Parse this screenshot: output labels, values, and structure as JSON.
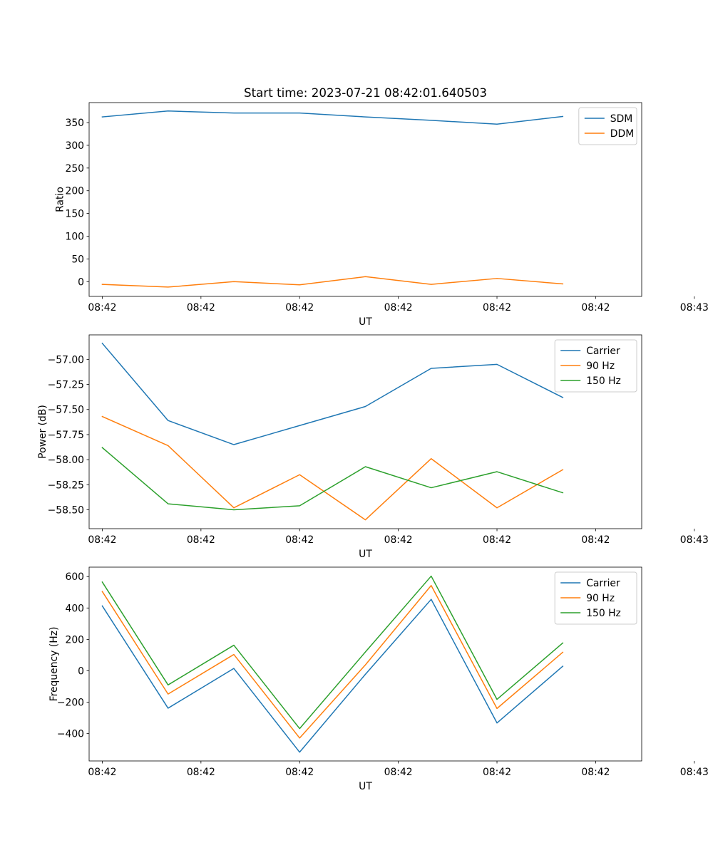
{
  "figure": {
    "title": "Start time: 2023-07-21 08:42:01.640503"
  },
  "chart_data": [
    {
      "type": "line",
      "id": "ratio",
      "title": "Start time: 2023-07-21 08:42:01.640503",
      "xlabel": "UT",
      "ylabel": "Ratio",
      "x": [
        0,
        1,
        2,
        3,
        4,
        5,
        6,
        7
      ],
      "xlim": [
        -0.2,
        8.2
      ],
      "xticks": [
        {
          "value": 0,
          "label": "08:42"
        },
        {
          "value": 1.5,
          "label": "08:42"
        },
        {
          "value": 3.0,
          "label": "08:42"
        },
        {
          "value": 4.5,
          "label": "08:42"
        },
        {
          "value": 6.0,
          "label": "08:42"
        },
        {
          "value": 7.5,
          "label": "08:42"
        },
        {
          "value": 9.0,
          "label": "08:43"
        }
      ],
      "ylim": [
        -32.5,
        394
      ],
      "yticks": [
        {
          "value": 0,
          "label": "0"
        },
        {
          "value": 50,
          "label": "50"
        },
        {
          "value": 100,
          "label": "100"
        },
        {
          "value": 150,
          "label": "150"
        },
        {
          "value": 200,
          "label": "200"
        },
        {
          "value": 250,
          "label": "250"
        },
        {
          "value": 300,
          "label": "300"
        },
        {
          "value": 350,
          "label": "350"
        }
      ],
      "legend_position": "top-right",
      "series": [
        {
          "name": "SDM",
          "color": "#1f77b4",
          "values": [
            362.5,
            375.5,
            371,
            371,
            362.5,
            355,
            346.5,
            363.5
          ]
        },
        {
          "name": "DDM",
          "color": "#ff7f0e",
          "values": [
            -6,
            -12,
            0,
            -7,
            11,
            -6,
            7,
            -5
          ]
        }
      ]
    },
    {
      "type": "line",
      "id": "power",
      "title": "",
      "xlabel": "UT",
      "ylabel": "Power (dB)",
      "x": [
        0,
        1,
        2,
        3,
        4,
        5,
        6,
        7
      ],
      "xlim": [
        -0.2,
        8.2
      ],
      "xticks": [
        {
          "value": 0,
          "label": "08:42"
        },
        {
          "value": 1.5,
          "label": "08:42"
        },
        {
          "value": 3.0,
          "label": "08:42"
        },
        {
          "value": 4.5,
          "label": "08:42"
        },
        {
          "value": 6.0,
          "label": "08:42"
        },
        {
          "value": 7.5,
          "label": "08:42"
        },
        {
          "value": 9.0,
          "label": "08:43"
        }
      ],
      "ylim": [
        -58.688,
        -56.756
      ],
      "yticks": [
        {
          "value": -57.0,
          "label": "−57.00"
        },
        {
          "value": -57.25,
          "label": "−57.25"
        },
        {
          "value": -57.5,
          "label": "−57.50"
        },
        {
          "value": -57.75,
          "label": "−57.75"
        },
        {
          "value": -58.0,
          "label": "−58.00"
        },
        {
          "value": -58.25,
          "label": "−58.25"
        },
        {
          "value": -58.5,
          "label": "−58.50"
        }
      ],
      "legend_position": "top-right",
      "series": [
        {
          "name": "Carrier",
          "color": "#1f77b4",
          "values": [
            -56.84,
            -57.61,
            -57.85,
            -57.66,
            -57.47,
            -57.09,
            -57.05,
            -57.38
          ]
        },
        {
          "name": "90 Hz",
          "color": "#ff7f0e",
          "values": [
            -57.57,
            -57.86,
            -58.48,
            -58.15,
            -58.6,
            -57.99,
            -58.48,
            -58.1
          ]
        },
        {
          "name": "150 Hz",
          "color": "#2ca02c",
          "values": [
            -57.88,
            -58.44,
            -58.5,
            -58.46,
            -58.07,
            -58.28,
            -58.12,
            -58.33
          ]
        }
      ]
    },
    {
      "type": "line",
      "id": "frequency",
      "title": "",
      "xlabel": "UT",
      "ylabel": "Frequency (Hz)",
      "x": [
        0,
        1,
        2,
        3,
        4,
        5,
        6,
        7
      ],
      "xlim": [
        -0.2,
        8.2
      ],
      "xticks": [
        {
          "value": 0,
          "label": "08:42"
        },
        {
          "value": 1.5,
          "label": "08:42"
        },
        {
          "value": 3.0,
          "label": "08:42"
        },
        {
          "value": 4.5,
          "label": "08:42"
        },
        {
          "value": 6.0,
          "label": "08:42"
        },
        {
          "value": 7.5,
          "label": "08:42"
        },
        {
          "value": 9.0,
          "label": "08:43"
        }
      ],
      "ylim": [
        -574,
        660
      ],
      "yticks": [
        {
          "value": -400,
          "label": "−400"
        },
        {
          "value": -200,
          "label": "−200"
        },
        {
          "value": 0,
          "label": "0"
        },
        {
          "value": 200,
          "label": "200"
        },
        {
          "value": 400,
          "label": "400"
        },
        {
          "value": 600,
          "label": "600"
        }
      ],
      "legend_position": "top-right",
      "series": [
        {
          "name": "Carrier",
          "color": "#1f77b4",
          "values": [
            413,
            -238,
            15,
            -518,
            -22,
            455,
            -332,
            29
          ]
        },
        {
          "name": "90 Hz",
          "color": "#ff7f0e",
          "values": [
            505,
            -148,
            104,
            -428,
            38,
            543,
            -240,
            118
          ]
        },
        {
          "name": "150 Hz",
          "color": "#2ca02c",
          "values": [
            565,
            -90,
            163,
            -368,
            120,
            603,
            -182,
            177
          ]
        }
      ]
    }
  ]
}
